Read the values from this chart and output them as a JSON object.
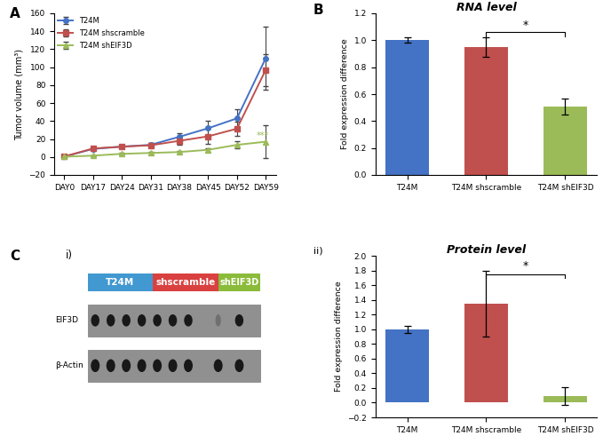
{
  "panel_A": {
    "days": [
      "DAY0",
      "DAY17",
      "DAY24",
      "DAY31",
      "DAY38",
      "DAY45",
      "DAY52",
      "DAY59"
    ],
    "T24M_mean": [
      0.5,
      9.0,
      11.5,
      13.5,
      22.5,
      32.0,
      43.0,
      110.0
    ],
    "T24M_err": [
      0.5,
      1.5,
      2.0,
      2.5,
      4.0,
      8.0,
      10.0,
      35.0
    ],
    "shscramble_mean": [
      0.5,
      9.5,
      11.5,
      13.0,
      18.0,
      23.0,
      31.5,
      97.0
    ],
    "shscramble_err": [
      0.5,
      1.5,
      2.0,
      2.5,
      4.0,
      8.0,
      8.0,
      18.0
    ],
    "shEIF3D_mean": [
      0.3,
      1.5,
      3.5,
      4.5,
      5.5,
      8.0,
      13.5,
      17.0
    ],
    "shEIF3D_err": [
      0.3,
      0.5,
      1.0,
      1.5,
      1.5,
      2.0,
      4.0,
      18.0
    ],
    "ylabel": "Tumor volume (mm³)",
    "ylim": [
      -20,
      160
    ],
    "yticks": [
      -20,
      0,
      20,
      40,
      60,
      80,
      100,
      120,
      140,
      160
    ],
    "T24M_color": "#4472C4",
    "shscramble_color": "#C0504D",
    "shEIF3D_color": "#9BBB59",
    "label_T24M": "T24M",
    "label_shscramble": "T24M shscramble",
    "label_shEIF3D": "T24M shEIF3D"
  },
  "panel_B": {
    "categories": [
      "T24M",
      "T24M shscramble",
      "T24M shEIF3D"
    ],
    "values": [
      1.0,
      0.95,
      0.51
    ],
    "errors": [
      0.02,
      0.07,
      0.06
    ],
    "colors": [
      "#4472C4",
      "#C0504D",
      "#9BBB59"
    ],
    "ylabel": "Fold expression difference",
    "title": "RNA level",
    "ylim": [
      0,
      1.2
    ],
    "yticks": [
      0,
      0.2,
      0.4,
      0.6,
      0.8,
      1.0,
      1.2
    ]
  },
  "panel_C": {
    "T24M_color": "#4298D0",
    "shscramble_color": "#D94040",
    "shEIF3D_color": "#8BBB3A",
    "label_T24M": "T24M",
    "label_shscramble": "shscramble",
    "label_shEIF3D": "shEIF3D",
    "EIF3D_label": "EIF3D",
    "bActin_label": "β-Actin",
    "band_bg_color": "#909090",
    "band_dark": "#181818",
    "band_faint": "#707070"
  },
  "panel_D": {
    "categories": [
      "T24M",
      "T24M shscramble",
      "T24M shEIF3D"
    ],
    "values": [
      1.0,
      1.35,
      0.09
    ],
    "errors": [
      0.05,
      0.45,
      0.12
    ],
    "colors": [
      "#4472C4",
      "#C0504D",
      "#9BBB59"
    ],
    "ylabel": "Fold expression difference",
    "title": "Protein level",
    "ylim": [
      -0.2,
      2.0
    ],
    "yticks": [
      -0.2,
      0,
      0.2,
      0.4,
      0.6,
      0.8,
      1.0,
      1.2,
      1.4,
      1.6,
      1.8,
      2.0
    ]
  }
}
